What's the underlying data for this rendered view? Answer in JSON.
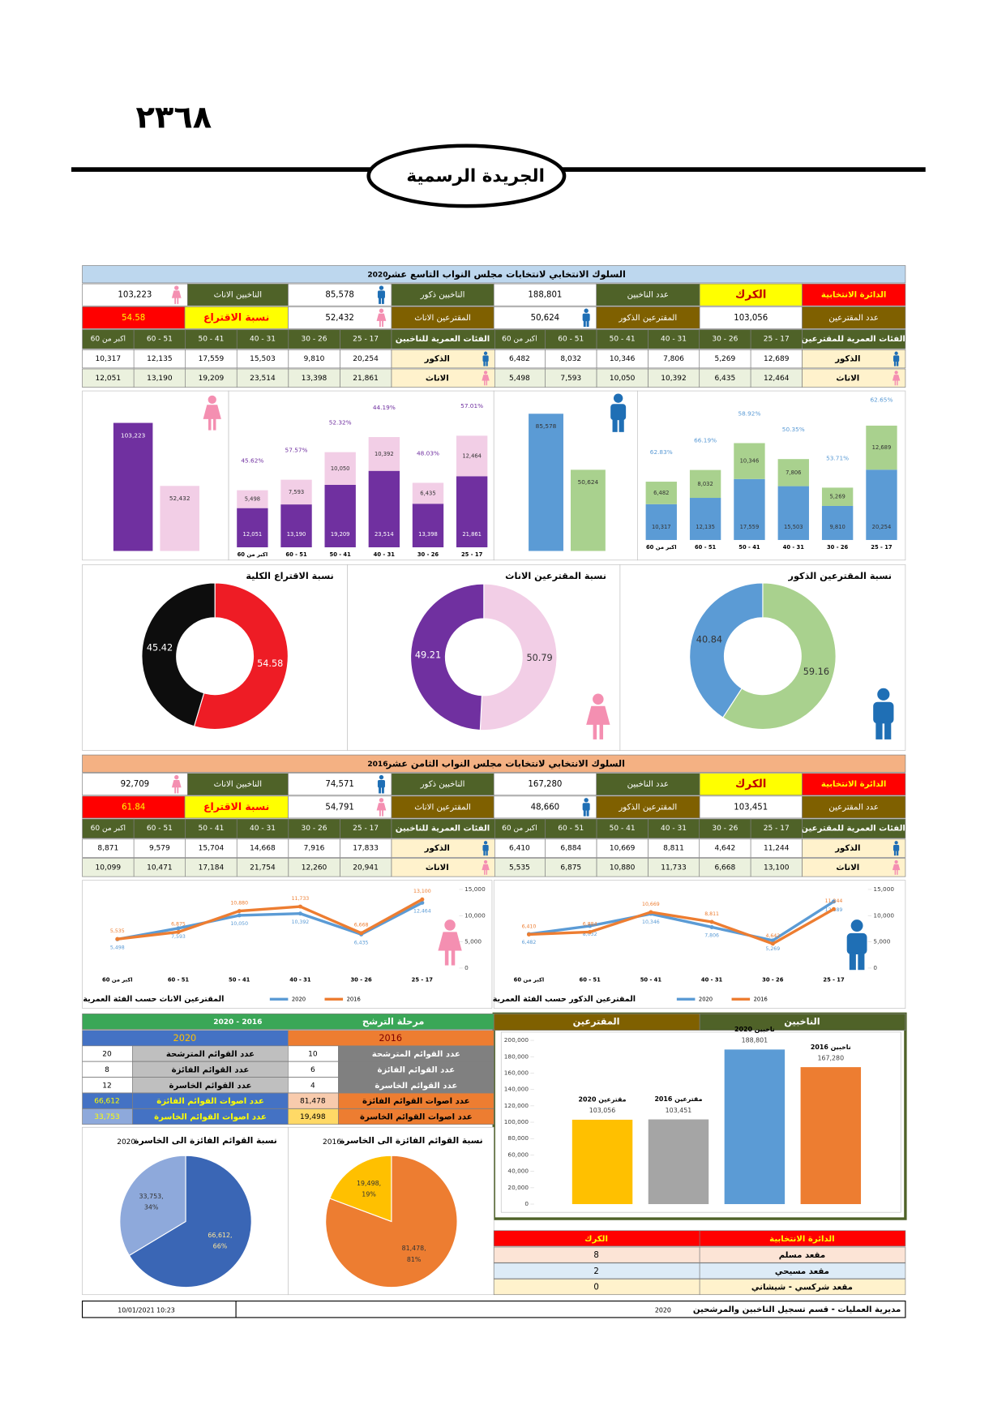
{
  "header": {
    "page_number": "٢٣٦٨",
    "gazette_title": "الجريدة الرسمية"
  },
  "sections": [
    {
      "title": "السلوك الانتخابي لانتخابات مجلس النواب التاسع عشر",
      "year": "2020",
      "summary": {
        "district_label": "الدائرة الانتخابية",
        "district": "الكرك",
        "voters_label": "عدد الناخبين",
        "voters": "188,801",
        "male_voters_label": "الناخبين ذكور",
        "male_voters": "85,578",
        "female_voters_label": "الناخبين الاناث",
        "female_voters": "103,223",
        "turnout_count_label": "عدد المقترعين",
        "turnout_count": "103,056",
        "male_turnout_label": "المقترعين الذكور",
        "male_turnout": "50,624",
        "female_turnout_label": "المقترعين الاناث",
        "female_turnout": "52,432",
        "turnout_rate_label": "نسبة الاقتراع",
        "turnout_rate": "54.58"
      },
      "turnout_ages": {
        "label": "الفئات العمرية للمقترعين",
        "columns": [
          "25 - 17",
          "30 - 26",
          "40 - 31",
          "50 - 41",
          "60 - 51",
          "اكبر من 60"
        ],
        "rows": [
          {
            "label": "الذكور",
            "values": [
              "12,689",
              "5,269",
              "7,806",
              "10,346",
              "8,032",
              "6,482"
            ]
          },
          {
            "label": "الاناث",
            "values": [
              "12,464",
              "6,435",
              "10,392",
              "10,050",
              "7,593",
              "5,498"
            ]
          }
        ]
      },
      "voter_ages": {
        "label": "الفئات العمرية للناخبين",
        "columns": [
          "25 - 17",
          "30 - 26",
          "40 - 31",
          "50 - 41",
          "60 - 51",
          "اكبر من 60"
        ],
        "rows": [
          {
            "label": "الذكور",
            "values": [
              "20,254",
              "9,810",
              "15,503",
              "17,559",
              "12,135",
              "10,317"
            ]
          },
          {
            "label": "الاناث",
            "values": [
              "21,861",
              "13,398",
              "23,514",
              "19,209",
              "13,190",
              "12,051"
            ]
          }
        ]
      }
    },
    {
      "title": "السلوك الانتخابي لانتخابات مجلس النواب الثامن عشر",
      "year": "2016",
      "summary": {
        "district_label": "الدائرة الانتخابية",
        "district": "الكرك",
        "voters_label": "عدد الناخبين",
        "voters": "167,280",
        "male_voters_label": "الناخبين ذكور",
        "male_voters": "74,571",
        "female_voters_label": "الناخبين الاناث",
        "female_voters": "92,709",
        "turnout_count_label": "عدد المقترعين",
        "turnout_count": "103,451",
        "male_turnout_label": "المقترعين الذكور",
        "male_turnout": "48,660",
        "female_turnout_label": "المقترعين الاناث",
        "female_turnout": "54,791",
        "turnout_rate_label": "نسبة الاقتراع",
        "turnout_rate": "61.84"
      },
      "turnout_ages": {
        "label": "الفئات العمرية للمقترعين",
        "columns": [
          "25 - 17",
          "30 - 26",
          "40 - 31",
          "50 - 41",
          "60 - 51",
          "اكبر من 60"
        ],
        "rows": [
          {
            "label": "الذكور",
            "values": [
              "11,244",
              "4,642",
              "8,811",
              "10,669",
              "6,884",
              "6,410"
            ]
          },
          {
            "label": "الاناث",
            "values": [
              "13,100",
              "6,668",
              "11,733",
              "10,880",
              "6,875",
              "5,535"
            ]
          }
        ]
      },
      "voter_ages": {
        "label": "الفئات العمرية  للناخبين",
        "columns": [
          "25 - 17",
          "30 - 26",
          "40 - 31",
          "50 - 41",
          "60 - 51",
          "اكبر من 60"
        ],
        "rows": [
          {
            "label": "الذكور",
            "values": [
              "17,833",
              "7,916",
              "14,668",
              "15,704",
              "9,579",
              "8,871"
            ]
          },
          {
            "label": "الاناث",
            "values": [
              "20,941",
              "12,260",
              "21,754",
              "17,184",
              "10,471",
              "10,099"
            ]
          }
        ]
      }
    }
  ],
  "chart_data": [
    {
      "type": "bar",
      "values": [
        103223,
        52432
      ],
      "value_labels": [
        "103,223",
        "52,432"
      ],
      "colors": [
        "#7030a0",
        "#f2cee6"
      ]
    },
    {
      "type": "stacked_bar",
      "categories": [
        "اكبر من 60",
        "60 - 51",
        "50 - 41",
        "40 - 31",
        "30 - 26",
        "25 - 17"
      ],
      "series": [
        {
          "color": "#7030a0",
          "values": [
            12051,
            13190,
            19209,
            23514,
            13398,
            21861
          ],
          "value_labels": [
            "12,051",
            "13,190",
            "19,209",
            "23,514",
            "13,398",
            "21,861"
          ]
        },
        {
          "color": "#f2cee6",
          "values": [
            5498,
            7593,
            10050,
            10392,
            6435,
            12464
          ],
          "value_labels": [
            "5,498",
            "7,593",
            "10,050",
            "10,392",
            "6,435",
            "12,464"
          ]
        }
      ],
      "rate_labels": [
        "45.62%",
        "57.57%",
        "52.32%",
        "44.19%",
        "48.03%",
        "57.01%"
      ],
      "rate_color": "#7030a0"
    },
    {
      "type": "bar",
      "values": [
        85578,
        50624
      ],
      "value_labels": [
        "85,578",
        "50,624"
      ],
      "colors": [
        "#5b9bd5",
        "#a9d18e"
      ]
    },
    {
      "type": "stacked_bar",
      "categories": [
        "اكبر من 60",
        "60 - 51",
        "50 - 41",
        "40 - 31",
        "30 - 26",
        "25 - 17"
      ],
      "series": [
        {
          "color": "#5b9bd5",
          "values": [
            10317,
            12135,
            17559,
            15503,
            9810,
            20254
          ],
          "value_labels": [
            "10,317",
            "12,135",
            "17,559",
            "15,503",
            "9,810",
            "20,254"
          ]
        },
        {
          "color": "#a9d18e",
          "values": [
            6482,
            8032,
            10346,
            7806,
            5269,
            12689
          ],
          "value_labels": [
            "6,482",
            "8,032",
            "10,346",
            "7,806",
            "5,269",
            "12,689"
          ]
        }
      ],
      "rate_labels": [
        "62.83%",
        "66.19%",
        "58.92%",
        "50.35%",
        "53.71%",
        "62.65%"
      ],
      "rate_color": "#5b9bd5"
    },
    {
      "type": "donut",
      "title": "نسبة الاقتراع الكلية",
      "values": [
        54.58,
        45.42
      ],
      "colors": [
        "#ee1c25",
        "#0d0d0d"
      ]
    },
    {
      "type": "donut",
      "title": "نسبة المقترعين الاناث",
      "values": [
        50.79,
        49.21
      ],
      "colors": [
        "#f2cee6",
        "#7030a0"
      ]
    },
    {
      "type": "donut",
      "title": "نسبة المقترعين الذكور",
      "values": [
        59.16,
        40.84
      ],
      "colors": [
        "#a9d18e",
        "#5b9bd5"
      ]
    },
    {
      "type": "line",
      "title": "المقترعين الاناث حسب الفئة العمرية",
      "categories": [
        "اكبر من 60",
        "60 - 51",
        "50 - 41",
        "40 - 31",
        "30 - 26",
        "25 - 17"
      ],
      "series": [
        {
          "name": "2020",
          "color": "#5b9bd5",
          "values": [
            5498,
            7593,
            10050,
            10392,
            6435,
            12464
          ],
          "value_labels": [
            "5,498",
            "7,593",
            "10,050",
            "10,392",
            "6,435",
            "12,464"
          ]
        },
        {
          "name": "2016",
          "color": "#ed7d31",
          "values": [
            5535,
            6875,
            10880,
            11733,
            6668,
            13100
          ],
          "value_labels": [
            "5,535",
            "6,875",
            "10,880",
            "11,733",
            "6,668",
            "13,100"
          ]
        }
      ],
      "ylim": [
        0,
        15000
      ],
      "yticks": [
        0,
        {
          "value": 5000,
          "label": "5,000"
        },
        {
          "value": 10000,
          "label": "10,000"
        },
        {
          "value": 15000,
          "label": "15,000"
        }
      ]
    },
    {
      "type": "line",
      "title": "المقترعين الذكور حسب الفئة العمرية",
      "categories": [
        "اكبر من 60",
        "60 - 51",
        "50 - 41",
        "40 - 31",
        "30 - 26",
        "25 - 17"
      ],
      "series": [
        {
          "name": "2020",
          "color": "#5b9bd5",
          "values": [
            6482,
            8032,
            10346,
            7806,
            5269,
            12689
          ],
          "value_labels": [
            "6,482",
            "8,032",
            "10,346",
            "7,806",
            "5,269",
            "12,689"
          ]
        },
        {
          "name": "2016",
          "color": "#ed7d31",
          "values": [
            6410,
            6884,
            10669,
            8811,
            4642,
            11244
          ],
          "value_labels": [
            "6,410",
            "6,884",
            "10,669",
            "8,811",
            "4,642",
            "11,244"
          ]
        }
      ],
      "ylim": [
        0,
        15000
      ],
      "yticks": [
        0,
        {
          "value": 5000,
          "label": "5,000"
        },
        {
          "value": 10000,
          "label": "10,000"
        },
        {
          "value": 15000,
          "label": "15,000"
        }
      ]
    },
    {
      "type": "pie",
      "title": "نسبة القوائم الفائزة الى الخاسرة",
      "subtitle": "2020",
      "values": [
        66612,
        33753
      ],
      "value_labels": [
        "66,612,",
        "33,753,"
      ],
      "percent_labels": [
        "66%",
        "34%"
      ],
      "colors": [
        "#3a66b5",
        "#8ea9db"
      ]
    },
    {
      "type": "pie",
      "title": "نسبة القوائم الفائزة الى الخاسرة",
      "subtitle": "2016",
      "values": [
        81478,
        19498
      ],
      "value_labels": [
        "81,478,",
        "19,498,"
      ],
      "percent_labels": [
        "81%",
        "19%"
      ],
      "colors": [
        "#ed7d31",
        "#ffc000"
      ]
    },
    {
      "type": "bar",
      "headers": [
        "المقترعين",
        "الناخبين"
      ],
      "categories": [
        "مقترعين 2020",
        "مقترعين 2016",
        "ناخبين 2020",
        "ناخبين 2016"
      ],
      "values": [
        103056,
        103451,
        188801,
        167280
      ],
      "value_labels": [
        "103,056",
        "103,451",
        "188,801",
        "167,280"
      ],
      "colors": [
        "#ffc000",
        "#a5a5a5",
        "#5b9bd5",
        "#ed7d31"
      ],
      "ylim": [
        0,
        200000
      ],
      "yticks": [
        0,
        {
          "value": 20000,
          "label": "20,000"
        },
        {
          "value": 40000,
          "label": "40,000"
        },
        {
          "value": 60000,
          "label": "60,000"
        },
        {
          "value": 80000,
          "label": "80,000"
        },
        {
          "value": 100000,
          "label": "100,000"
        },
        {
          "value": 120000,
          "label": "120,000"
        },
        {
          "value": 140000,
          "label": "140,000"
        },
        {
          "value": 160000,
          "label": "160,000"
        },
        {
          "value": 180000,
          "label": "180,000"
        },
        {
          "value": 200000,
          "label": "200,000"
        }
      ]
    }
  ],
  "candidacy": {
    "title": "مرحلة الترشح",
    "years": "2020 - 2016",
    "columns": [
      {
        "year": "2020",
        "rows": [
          [
            "عدد القوائم المترشحة",
            "20"
          ],
          [
            "عدد القوائم الفائزة",
            "8"
          ],
          [
            "عدد القوائم الخاسرة",
            "12"
          ],
          [
            "عدد اصوات القوائم الفائزة",
            "66,612"
          ],
          [
            "عدد اصوات القوائم الخاسرة",
            "33,753"
          ]
        ]
      },
      {
        "year": "2016",
        "rows": [
          [
            "عدد القوائم المترشحة",
            "10"
          ],
          [
            "عدد القوائم الفائزة",
            "6"
          ],
          [
            "عدد القوائم الخاسرة",
            "4"
          ],
          [
            "عدد اصوات القوائم الفائزة",
            "81,478"
          ],
          [
            "عدد اصوات القوائم الخاسرة",
            "19,498"
          ]
        ]
      }
    ]
  },
  "seats": {
    "headers": [
      "الدائرة الانتخابية",
      "الكرك"
    ],
    "rows": [
      [
        "مقعد مسلم",
        "8"
      ],
      [
        "مقعد مسيحي",
        "2"
      ],
      [
        "مقعد شركسي - شيشاني",
        "0"
      ]
    ]
  },
  "footer": {
    "department": "مديرية العمليات - قسم تسجيل الناخبين والمرشحين",
    "year": "2020",
    "timestamp": "10/01/2021 10:23"
  }
}
